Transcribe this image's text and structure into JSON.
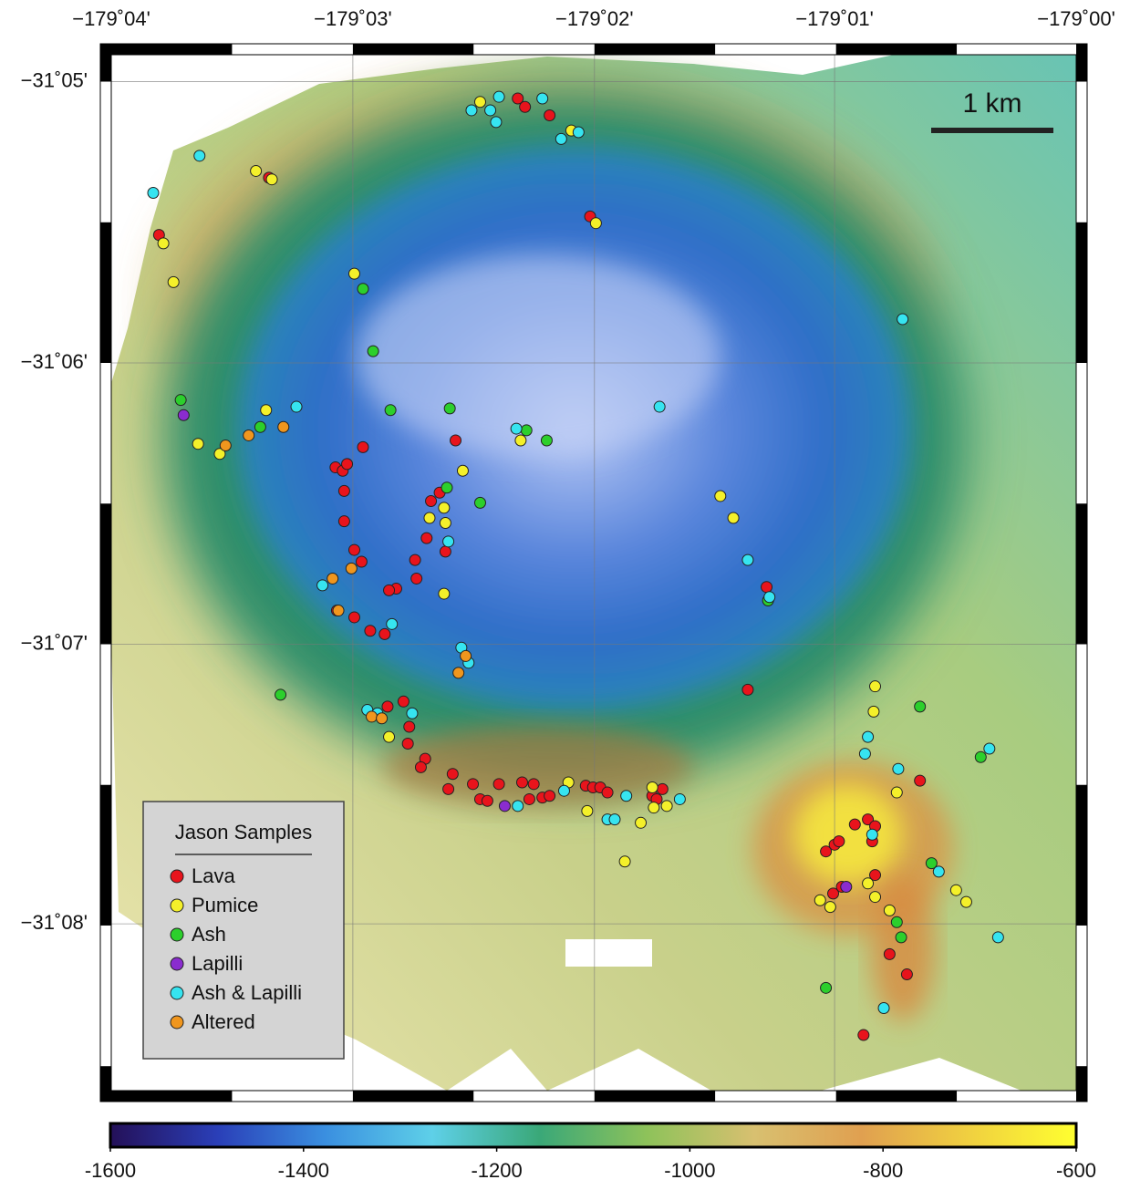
{
  "chart_data": {
    "type": "scatter",
    "xlim": [
      -179.0667,
      -179.0
    ],
    "ylim": [
      -31.0817,
      -31.1432
    ],
    "xticks": [
      {
        "value": -179.0667,
        "label": "−179˚04'"
      },
      {
        "value": -179.05,
        "label": "−179˚03'"
      },
      {
        "value": -179.0333,
        "label": "−179˚02'"
      },
      {
        "value": -179.0167,
        "label": "−179˚01'"
      },
      {
        "value": -179.0,
        "label": "−179˚00'"
      }
    ],
    "yticks": [
      {
        "value": -31.0833,
        "label": "−31˚05'"
      },
      {
        "value": -31.1,
        "label": "−31˚06'"
      },
      {
        "value": -31.1167,
        "label": "−31˚07'"
      },
      {
        "value": -31.1333,
        "label": "−31˚08'"
      }
    ],
    "grid": true,
    "scale_bar_label": "1 km",
    "legend_title": "Jason Samples",
    "legend_position": "lower left",
    "series": [
      {
        "name": "Lava",
        "color": "#e8141c",
        "x": [
          -179.0386,
          -179.0381,
          -179.0364,
          -179.0336,
          -179.0558,
          -179.0634,
          -179.0493,
          -179.0512,
          -179.0507,
          -179.0504,
          -179.0429,
          -179.0506,
          -179.0446,
          -179.044,
          -179.0506,
          -179.0449,
          -179.0436,
          -179.0499,
          -179.0494,
          -179.0457,
          -179.0456,
          -179.047,
          -179.0475,
          -179.0511,
          -179.0499,
          -179.0488,
          -179.0478,
          -179.0476,
          -179.0465,
          -179.0461,
          -179.0462,
          -179.045,
          -179.0453,
          -179.0431,
          -179.0434,
          -179.0417,
          -179.0412,
          -179.0407,
          -179.0399,
          -179.0383,
          -179.0375,
          -179.0378,
          -179.0369,
          -179.0364,
          -179.0339,
          -179.0334,
          -179.0329,
          -179.0324,
          -179.0293,
          -179.029,
          -179.0286,
          -179.0214,
          -179.0227,
          -179.0108,
          -179.0153,
          -179.0144,
          -179.0139,
          -179.0141,
          -179.0173,
          -179.0167,
          -179.0164,
          -179.0139,
          -179.0168,
          -179.0162,
          -179.0129,
          -179.0117,
          -179.0147
        ],
        "y": [
          -31.0843,
          -31.0848,
          -31.0853,
          -31.0913,
          -31.089,
          -31.0924,
          -31.105,
          -31.1062,
          -31.1064,
          -31.106,
          -31.1046,
          -31.1076,
          -31.1082,
          -31.1077,
          -31.1094,
          -31.1104,
          -31.1112,
          -31.1111,
          -31.1118,
          -31.1117,
          -31.1128,
          -31.1134,
          -31.1135,
          -31.1147,
          -31.1151,
          -31.1159,
          -31.1161,
          -31.1204,
          -31.1201,
          -31.1216,
          -31.1226,
          -31.1235,
          -31.124,
          -31.1244,
          -31.1253,
          -31.125,
          -31.1259,
          -31.126,
          -31.125,
          -31.1249,
          -31.125,
          -31.1259,
          -31.1258,
          -31.1257,
          -31.1251,
          -31.1252,
          -31.1252,
          -31.1255,
          -31.1257,
          -31.1259,
          -31.1253,
          -31.1133,
          -31.1194,
          -31.1248,
          -31.1274,
          -31.1271,
          -31.1275,
          -31.1284,
          -31.129,
          -31.1286,
          -31.1284,
          -31.1304,
          -31.1315,
          -31.1311,
          -31.1351,
          -31.1363,
          -31.1399
        ]
      },
      {
        "name": "Pumice",
        "color": "#f4f02a",
        "x": [
          -179.0412,
          -179.0349,
          -179.0567,
          -179.0556,
          -179.0631,
          -179.0624,
          -179.0499,
          -179.056,
          -179.0607,
          -179.0592,
          -179.0384,
          -179.0424,
          -179.0437,
          -179.0447,
          -179.0436,
          -179.0437,
          -179.0351,
          -179.0338,
          -179.0301,
          -179.0312,
          -179.0293,
          -179.0292,
          -179.0283,
          -179.0246,
          -179.0237,
          -179.0139,
          -179.014,
          -179.0124,
          -179.0144,
          -179.0177,
          -179.017,
          -179.0139,
          -179.0129,
          -179.0083,
          -179.0076,
          -179.0475,
          -179.0332
        ],
        "y": [
          -31.0845,
          -31.0862,
          -31.0886,
          -31.0891,
          -31.0929,
          -31.0952,
          -31.0947,
          -31.1028,
          -31.1048,
          -31.1054,
          -31.1046,
          -31.1064,
          -31.1086,
          -31.1092,
          -31.1095,
          -31.1137,
          -31.1249,
          -31.1266,
          -31.1273,
          -31.1296,
          -31.1252,
          -31.1264,
          -31.1263,
          -31.1079,
          -31.1092,
          -31.1192,
          -31.1207,
          -31.1255,
          -31.1309,
          -31.1319,
          -31.1323,
          -31.1317,
          -31.1325,
          -31.1313,
          -31.132,
          -31.1222,
          -31.0917
        ]
      },
      {
        "name": "Ash",
        "color": "#2ccf2c",
        "x": [
          -179.0493,
          -179.0486,
          -179.0619,
          -179.0564,
          -179.0474,
          -179.0433,
          -179.038,
          -179.0366,
          -179.0435,
          -179.0412,
          -179.055,
          -179.0108,
          -179.0066,
          -179.01,
          -179.0124,
          -179.0121,
          -179.0173,
          -179.0213
        ],
        "y": [
          -31.0956,
          -31.0993,
          -31.1022,
          -31.1038,
          -31.1028,
          -31.1027,
          -31.104,
          -31.1046,
          -31.1074,
          -31.1083,
          -31.1197,
          -31.1204,
          -31.1234,
          -31.1297,
          -31.1332,
          -31.1341,
          -31.1371,
          -31.1141
        ]
      },
      {
        "name": "Lapilli",
        "color": "#8a2ccf",
        "x": [
          -179.0617,
          -179.0395,
          -179.0159
        ],
        "y": [
          -31.1031,
          -31.1263,
          -31.1311
        ]
      },
      {
        "name": "Ash & Lapilli",
        "color": "#36e4f0",
        "x": [
          -179.0606,
          -179.0638,
          -179.0399,
          -179.0369,
          -179.0418,
          -179.0405,
          -179.0401,
          -179.0356,
          -179.0344,
          -179.012,
          -179.0539,
          -179.0288,
          -179.0387,
          -179.0434,
          -179.0521,
          -179.0473,
          -179.0425,
          -179.042,
          -179.049,
          -179.0483,
          -179.0459,
          -179.0386,
          -179.0354,
          -179.0324,
          -179.0319,
          -179.0311,
          -179.0274,
          -179.0227,
          -179.0212,
          -179.0144,
          -179.0146,
          -179.0123,
          -179.006,
          -179.0095,
          -179.0141,
          -179.0054,
          -179.0133
        ],
        "y": [
          -31.0877,
          -31.0899,
          -31.0842,
          -31.0843,
          -31.085,
          -31.085,
          -31.0857,
          -31.0867,
          -31.0863,
          -31.0974,
          -31.1026,
          -31.1026,
          -31.1039,
          -31.1106,
          -31.1132,
          -31.1155,
          -31.1169,
          -31.1178,
          -31.1206,
          -31.1208,
          -31.1208,
          -31.1263,
          -31.1254,
          -31.1271,
          -31.1271,
          -31.1257,
          -31.1259,
          -31.1117,
          -31.1139,
          -31.1222,
          -31.1232,
          -31.1241,
          -31.1229,
          -31.1302,
          -31.128,
          -31.1341,
          -31.1383
        ]
      },
      {
        "name": "Altered",
        "color": "#f0961e",
        "x": [
          -179.0588,
          -179.0572,
          -179.0548,
          -179.0514,
          -179.0501,
          -179.0487,
          -179.048,
          -179.0422,
          -179.0427,
          -179.051
        ],
        "y": [
          -31.1049,
          -31.1043,
          -31.1038,
          -31.1128,
          -31.1122,
          -31.121,
          -31.1211,
          -31.1174,
          -31.1184,
          -31.1147
        ]
      }
    ],
    "colorbar": {
      "range": [
        -1600,
        -600
      ],
      "ticks": [
        -1600,
        -1400,
        -1200,
        -1000,
        -800,
        -600
      ],
      "colors": [
        "#241058",
        "#2a3fb8",
        "#3a8fe0",
        "#5ed0e8",
        "#3aa878",
        "#8ec25a",
        "#d8c070",
        "#e0a050",
        "#f0d040",
        "#ffff30"
      ]
    }
  }
}
